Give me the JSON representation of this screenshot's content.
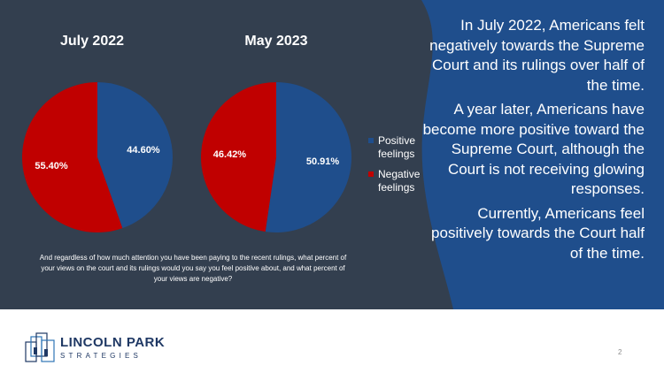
{
  "colors": {
    "background": "#333f4f",
    "accent_blue": "#1f4e8c",
    "positive": "#1f4e8c",
    "negative": "#c00000",
    "text": "#ffffff",
    "brand": "#1f3864"
  },
  "chart_data": [
    {
      "type": "pie",
      "title": "July 2022",
      "categories": [
        "Positive feelings",
        "Negative feelings"
      ],
      "values": [
        44.6,
        55.4
      ],
      "labels": [
        "44.60%",
        "55.40%"
      ]
    },
    {
      "type": "pie",
      "title": "May 2023",
      "categories": [
        "Positive feelings",
        "Negative feelings"
      ],
      "values": [
        50.91,
        46.42
      ],
      "labels": [
        "50.91%",
        "46.42%"
      ]
    }
  ],
  "legend": {
    "items": [
      {
        "label": "Positive feelings",
        "color": "#1f4e8c"
      },
      {
        "label": "Negative feelings",
        "color": "#c00000"
      }
    ]
  },
  "question": "And regardless of how much attention you have been paying to the recent rulings, what percent of your views on the court and its rulings would you say you feel positive about, and what percent of your views are negative?",
  "narrative": {
    "p1": "In July 2022, Americans felt negatively towards the Supreme Court and its rulings over half of the time.",
    "p2": "A year later, Americans have become more positive toward the Supreme Court, although the Court is not receiving glowing responses.",
    "p3": "Currently, Americans feel positively towards the Court half of the time."
  },
  "footer": {
    "brand_name": "LINCOLN PARK",
    "brand_tagline": "STRATEGIES",
    "page_number": "2"
  }
}
